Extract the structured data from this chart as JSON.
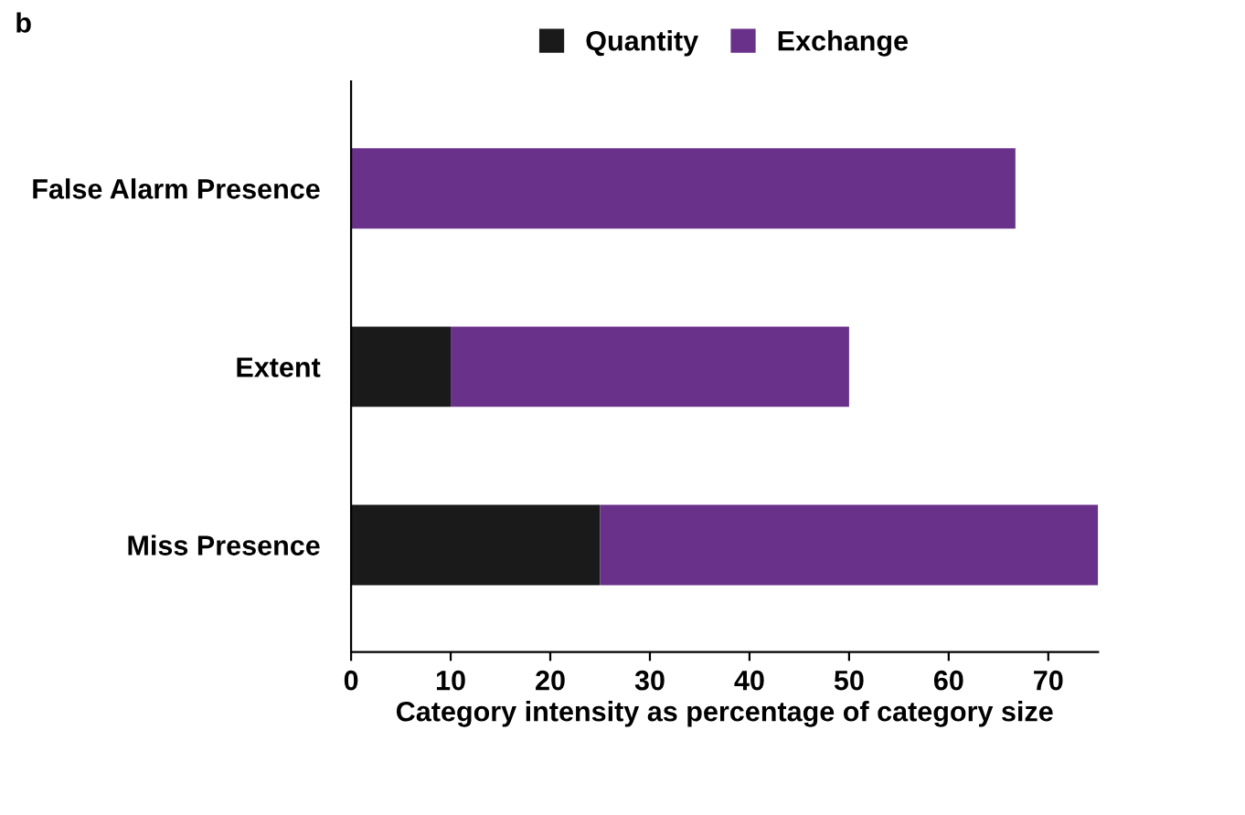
{
  "chart_data": {
    "type": "bar",
    "orientation": "horizontal",
    "stacked": true,
    "categories": [
      "False Alarm Presence",
      "Extent",
      "Miss Presence"
    ],
    "series": [
      {
        "name": "Quantity",
        "color": "#1a1a1a",
        "values": [
          0,
          10,
          25
        ]
      },
      {
        "name": "Exchange",
        "color": "#6a318a",
        "values": [
          66.7,
          40,
          50
        ]
      }
    ],
    "xlabel": "Category intensity as percentage of category size",
    "xlim": [
      0,
      75
    ],
    "xticks": [
      0,
      10,
      20,
      30,
      40,
      50,
      60,
      70
    ],
    "annotations": [
      "b"
    ],
    "legend": "top",
    "grid": false
  }
}
